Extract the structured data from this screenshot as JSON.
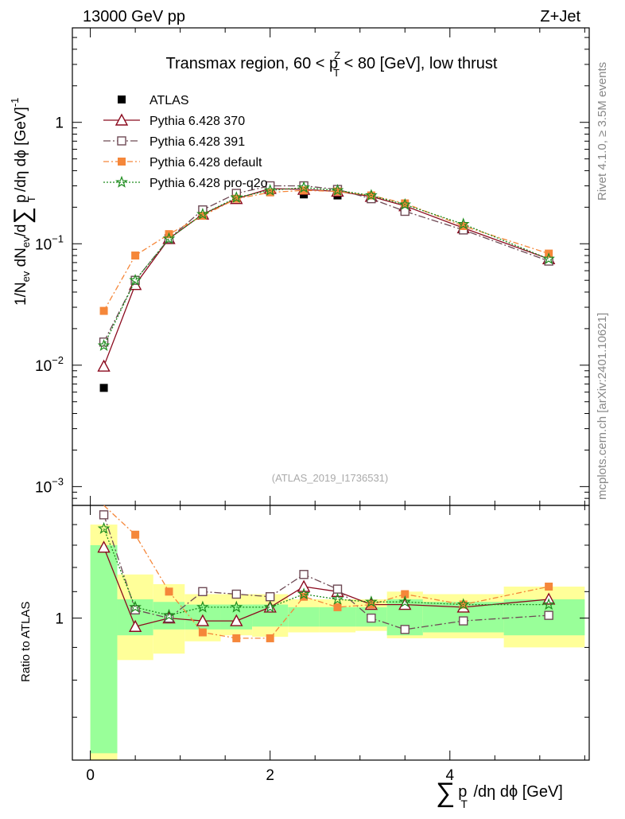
{
  "header": {
    "left": "13000 GeV pp",
    "right": "Z+Jet",
    "plot_title": "Transmax region, 60 < p",
    "plot_title_sup": "Z",
    "plot_title_sub": "T",
    "plot_title_rest": " < 80 [GeV], low thrust",
    "watermark": "(ATLAS_2019_I1736531)",
    "side_rivet": "Rivet 4.1.0, ≥ 3.5M events",
    "side_mcplots": "mcplots.cern.ch [arXiv:2401.10621]"
  },
  "axes": {
    "ylabel_main": "1/N",
    "ylabel_main_sub1": "ev",
    "ylabel_main_mid": " dN",
    "ylabel_main_sub2": "ev",
    "ylabel_main_tail": "/d",
    "ylabel_main_sum": "∑",
    "ylabel_main_pt": " p",
    "ylabel_main_pt_sub": "T",
    "ylabel_main_end": " /dη dϕ  [GeV]",
    "ylabel_main_exp": "-1",
    "ylabel_ratio": "Ratio to ATLAS",
    "xlabel_sum": "∑",
    "xlabel_p": "p",
    "xlabel_sub": "T",
    "xlabel_rest": " /dη dϕ [GeV]",
    "y_ticks_main": [
      {
        "mant": "10",
        "exp": "−3",
        "value": 0.001
      },
      {
        "mant": "10",
        "exp": "−2",
        "value": 0.01
      },
      {
        "mant": "10",
        "exp": "−1",
        "value": 0.1
      },
      {
        "mant": "1",
        "exp": "",
        "value": 1
      }
    ],
    "y_tick_ratio": "1",
    "x_ticks": [
      "0",
      "2",
      "4"
    ]
  },
  "legend": [
    {
      "label": "ATLAS",
      "color": "#000000",
      "marker": "square-filled",
      "dash": ""
    },
    {
      "label": "Pythia 6.428 370",
      "color": "#8b0a1e",
      "marker": "triangle-open",
      "dash": ""
    },
    {
      "label": "Pythia 6.428 391",
      "color": "#6e4a55",
      "marker": "square-open",
      "dash": "9,3,2,3"
    },
    {
      "label": "Pythia 6.428 default",
      "color": "#f5873a",
      "marker": "square-filled",
      "dash": "7,3,2,3"
    },
    {
      "label": "Pythia 6.428 pro-q2o",
      "color": "#1e8c1e",
      "marker": "star",
      "dash": "2,2"
    }
  ],
  "chart_data": {
    "type": "line",
    "title": "Transmax region, 60 < pT^Z < 80 [GeV], low thrust",
    "xlabel": "∑ pT /dη dϕ [GeV]",
    "ylabel": "1/Nev dNev/d∑ pT /dη dϕ [GeV]^-1",
    "yscale": "log",
    "xlim": [
      -0.2,
      5.55
    ],
    "ylim": [
      0.0007,
      6.0
    ],
    "ratio_ylim": [
      0.6,
      1.5
    ],
    "x": [
      0.15,
      0.5,
      0.875,
      1.25,
      1.625,
      2.0,
      2.375,
      2.75,
      3.125,
      3.5,
      4.15,
      5.1
    ],
    "bin_edges": [
      0.0,
      0.3,
      0.7,
      1.05,
      1.45,
      1.8,
      2.2,
      2.55,
      2.95,
      3.3,
      3.7,
      4.6,
      5.5
    ],
    "reference": {
      "name": "ATLAS",
      "values": [
        0.0065,
        0.049,
        0.11,
        0.18,
        0.24,
        0.27,
        0.255,
        0.25,
        0.235,
        0.195,
        0.13,
        0.072
      ],
      "band_stat_lo": [
        0.615,
        0.94,
        0.96,
        0.96,
        0.96,
        0.97,
        0.97,
        0.97,
        0.97,
        0.94,
        0.95,
        0.94
      ],
      "band_stat_hi": [
        1.3,
        1.07,
        1.06,
        1.05,
        1.05,
        1.05,
        1.04,
        1.04,
        1.04,
        1.07,
        1.06,
        1.07
      ],
      "band_tot_lo": [
        0.6,
        0.86,
        0.88,
        0.92,
        0.94,
        0.935,
        0.95,
        0.95,
        0.955,
        0.93,
        0.93,
        0.9
      ],
      "band_tot_hi": [
        1.4,
        1.17,
        1.13,
        1.09,
        1.09,
        1.09,
        1.07,
        1.07,
        1.07,
        1.1,
        1.09,
        1.12
      ]
    },
    "series": [
      {
        "name": "Pythia 6.428 370",
        "values": [
          0.0098,
          0.046,
          0.11,
          0.175,
          0.235,
          0.285,
          0.28,
          0.27,
          0.245,
          0.205,
          0.135,
          0.075
        ],
        "ratio": [
          1.29,
          0.97,
          1.0,
          0.99,
          0.99,
          1.04,
          1.12,
          1.1,
          1.05,
          1.05,
          1.04,
          1.07
        ]
      },
      {
        "name": "Pythia 6.428 391",
        "values": [
          0.0155,
          0.05,
          0.11,
          0.19,
          0.26,
          0.3,
          0.3,
          0.28,
          0.235,
          0.185,
          0.13,
          0.072
        ],
        "ratio": [
          1.45,
          1.03,
          1.0,
          1.1,
          1.09,
          1.08,
          1.17,
          1.11,
          1.0,
          0.96,
          0.99,
          1.01
        ]
      },
      {
        "name": "Pythia 6.428 default",
        "values": [
          0.028,
          0.08,
          0.12,
          0.17,
          0.235,
          0.265,
          0.275,
          0.27,
          0.25,
          0.215,
          0.14,
          0.083
        ],
        "ratio": [
          1.95,
          1.35,
          1.1,
          0.95,
          0.93,
          0.93,
          1.08,
          1.04,
          1.05,
          1.09,
          1.05,
          1.12
        ]
      },
      {
        "name": "Pythia 6.428 pro-q2o",
        "values": [
          0.0145,
          0.05,
          0.11,
          0.175,
          0.24,
          0.275,
          0.29,
          0.275,
          0.25,
          0.21,
          0.145,
          0.075
        ],
        "ratio": [
          1.38,
          1.04,
          1.01,
          1.04,
          1.04,
          1.04,
          1.09,
          1.07,
          1.06,
          1.06,
          1.05,
          1.05
        ]
      }
    ]
  }
}
